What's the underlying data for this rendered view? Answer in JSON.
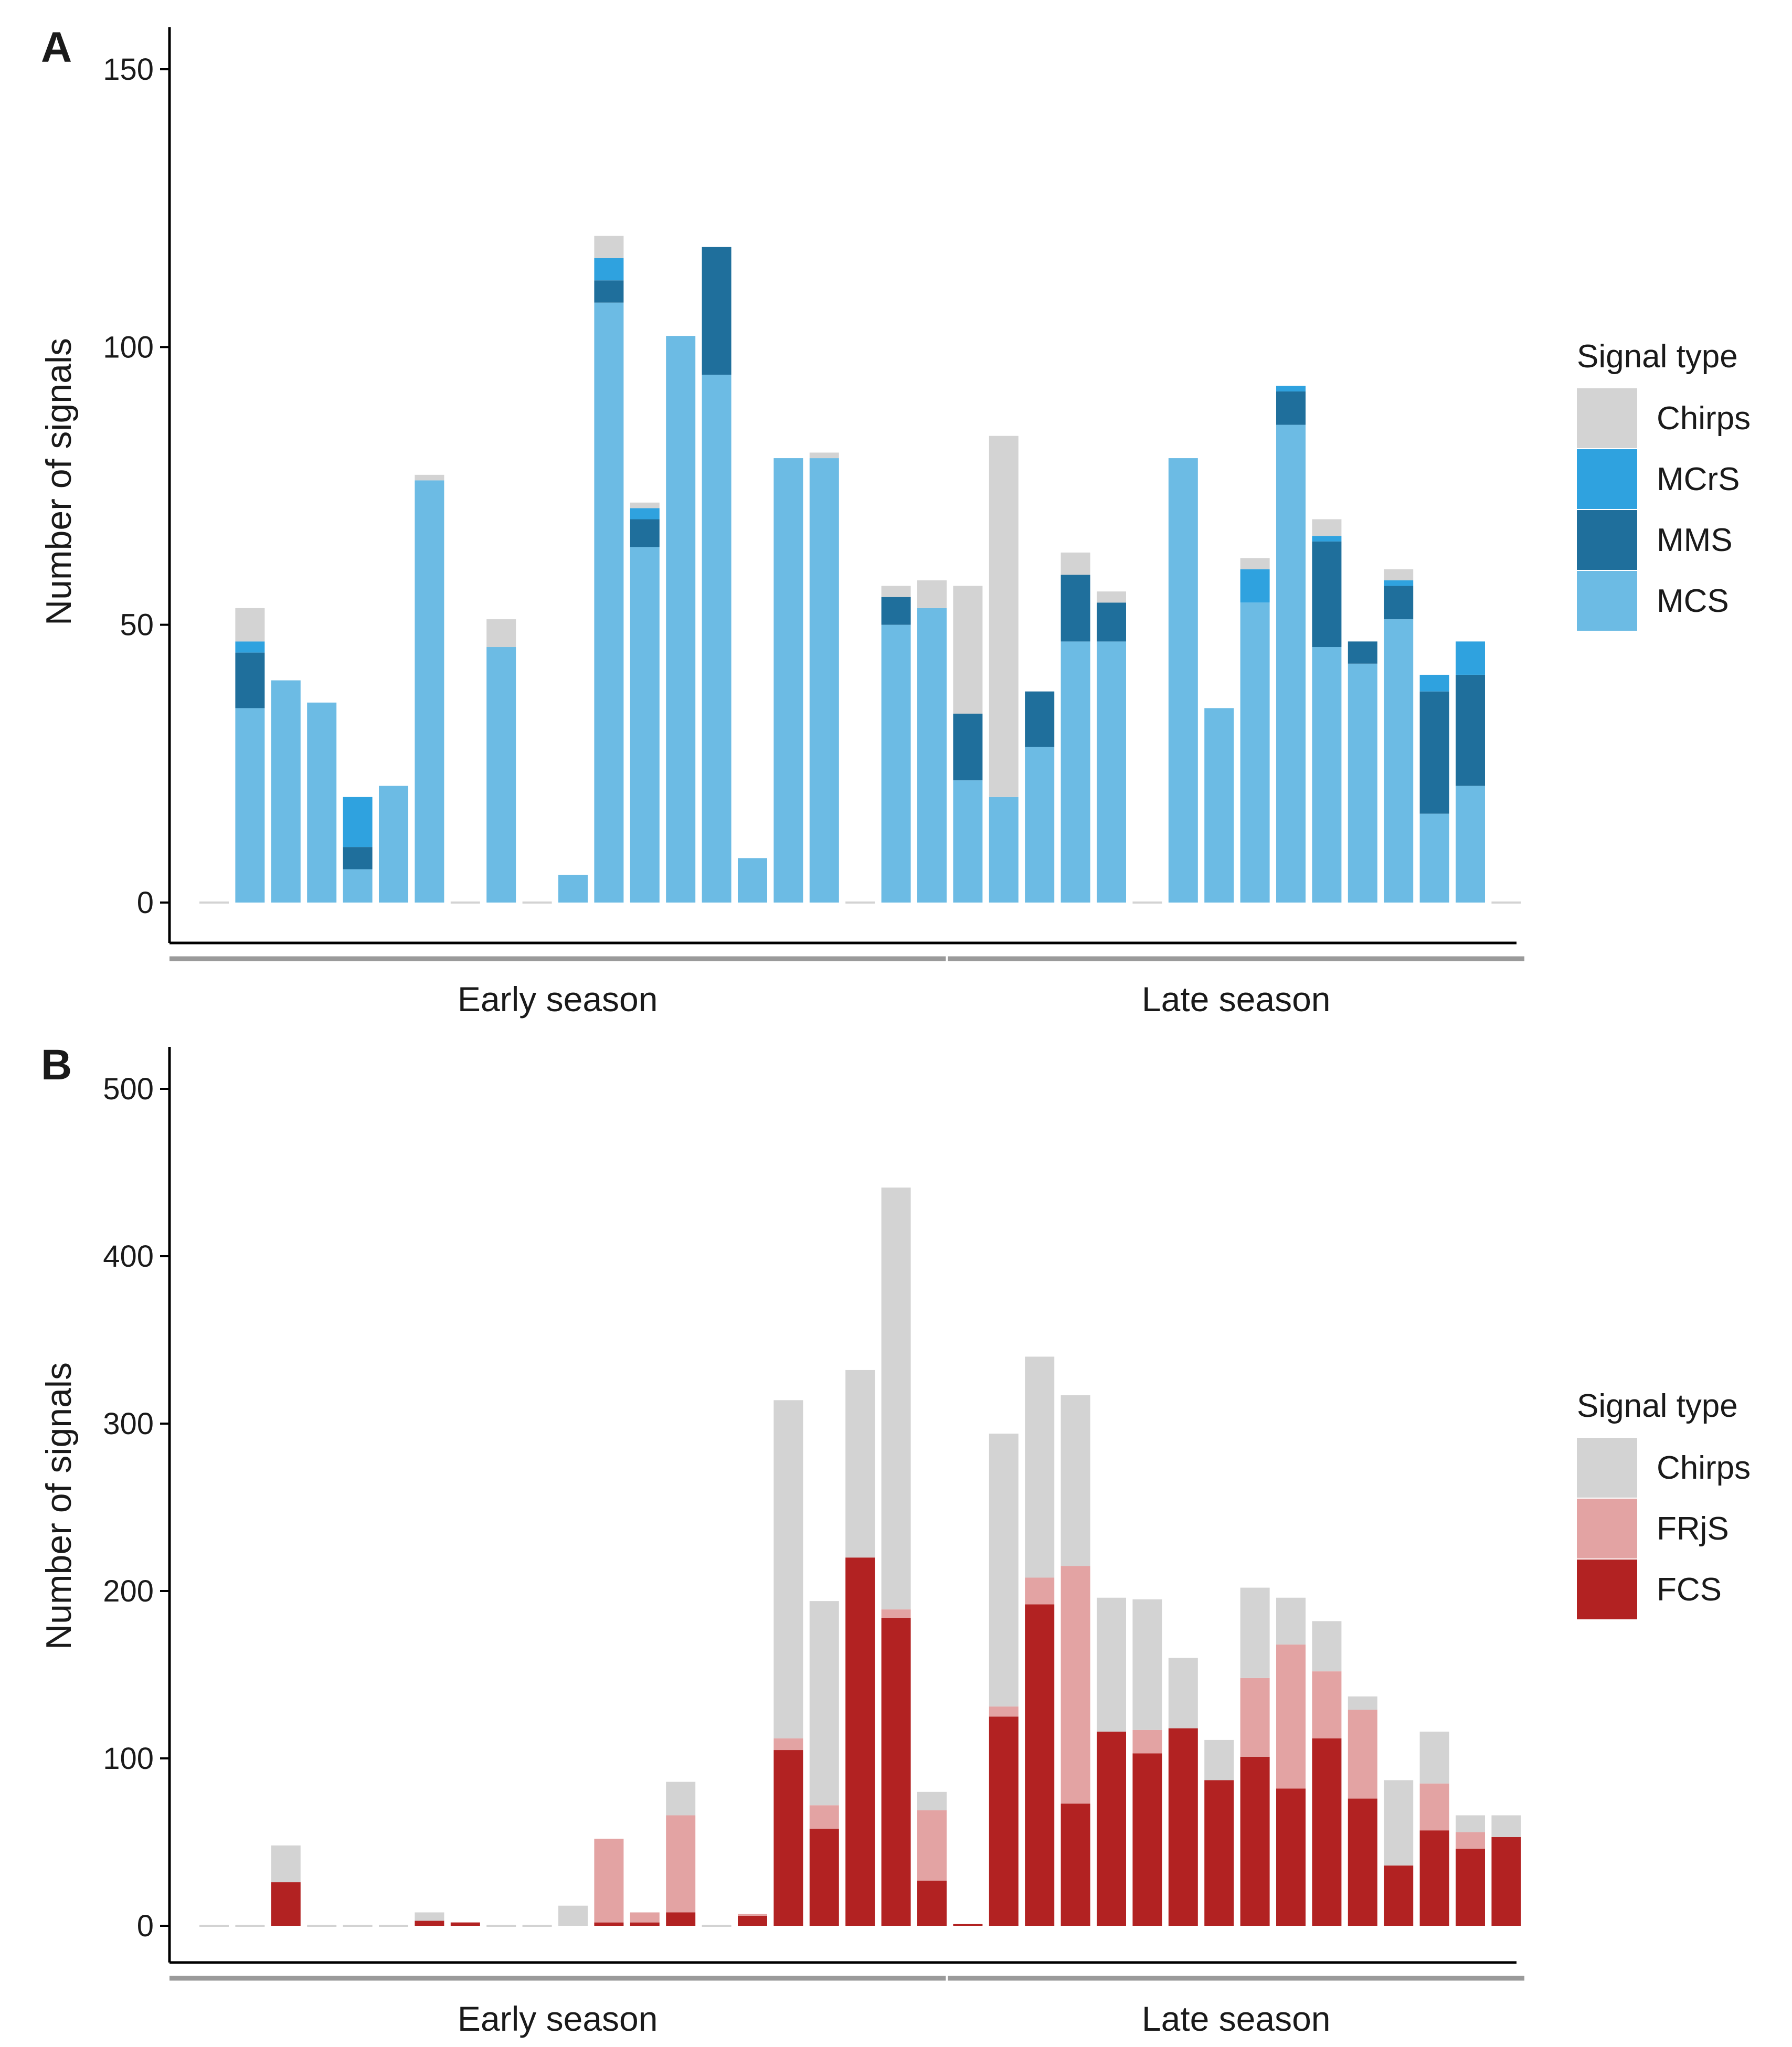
{
  "chart_data": [
    {
      "panel": "A",
      "type": "bar",
      "stacked": true,
      "ylabel": "Number of signals",
      "ylim": [
        0,
        150
      ],
      "yticks": [
        0,
        50,
        100,
        150
      ],
      "groups": [
        {
          "label": "Early season",
          "start": 1,
          "end": 21
        },
        {
          "label": "Late season",
          "start": 22,
          "end": 37
        }
      ],
      "legend": {
        "title": "Signal type",
        "placement": "right"
      },
      "series": [
        {
          "name": "MCS",
          "color": "#6cbbe4",
          "values": [
            0,
            35,
            40,
            36,
            6,
            21,
            76,
            0,
            46,
            0,
            5,
            108,
            64,
            102,
            95,
            8,
            80,
            80,
            0,
            50,
            53,
            22,
            19,
            28,
            47,
            47,
            0,
            80,
            35,
            54,
            86,
            46,
            43,
            51,
            16,
            21,
            0
          ]
        },
        {
          "name": "MMS",
          "color": "#1f6f9c",
          "values": [
            0,
            10,
            0,
            0,
            4,
            0,
            0,
            0,
            0,
            0,
            0,
            4,
            5,
            0,
            23,
            0,
            0,
            0,
            0,
            5,
            0,
            12,
            0,
            10,
            12,
            7,
            0,
            0,
            0,
            0,
            6,
            19,
            4,
            6,
            22,
            20,
            0
          ]
        },
        {
          "name": "MCrS",
          "color": "#2fa2df",
          "values": [
            0,
            2,
            0,
            0,
            9,
            0,
            0,
            0,
            0,
            0,
            0,
            4,
            2,
            0,
            0,
            0,
            0,
            0,
            0,
            0,
            0,
            0,
            0,
            0,
            0,
            0,
            0,
            0,
            0,
            6,
            1,
            1,
            0,
            1,
            3,
            6,
            0
          ]
        },
        {
          "name": "Chirps",
          "color": "#d3d3d3",
          "values": [
            0,
            6,
            0,
            0,
            0,
            0,
            1,
            0,
            5,
            0,
            0,
            4,
            1,
            0,
            0,
            0,
            0,
            1,
            0,
            2,
            5,
            23,
            65,
            0,
            4,
            2,
            0,
            0,
            0,
            2,
            0,
            3,
            0,
            2,
            0,
            0,
            0
          ]
        }
      ],
      "legend_order": [
        "Chirps",
        "MCrS",
        "MMS",
        "MCS"
      ]
    },
    {
      "panel": "B",
      "type": "bar",
      "stacked": true,
      "ylabel": "Number of signals",
      "ylim": [
        0,
        500
      ],
      "yticks": [
        0,
        100,
        200,
        300,
        400,
        500
      ],
      "groups": [
        {
          "label": "Early season",
          "start": 1,
          "end": 21
        },
        {
          "label": "Late season",
          "start": 22,
          "end": 37
        }
      ],
      "legend": {
        "title": "Signal type",
        "placement": "right"
      },
      "series": [
        {
          "name": "FCS",
          "color": "#b22222",
          "values": [
            0,
            0,
            26,
            0,
            0,
            0,
            3,
            2,
            0,
            0,
            0,
            2,
            2,
            8,
            0,
            6,
            105,
            58,
            220,
            184,
            27,
            1,
            125,
            192,
            73,
            116,
            103,
            118,
            87,
            101,
            82,
            112,
            76,
            36,
            57,
            46,
            53
          ]
        },
        {
          "name": "FRjS",
          "color": "#e3a3a3",
          "values": [
            0,
            0,
            0,
            0,
            0,
            0,
            0,
            0,
            0,
            0,
            0,
            50,
            6,
            58,
            0,
            1,
            7,
            14,
            0,
            5,
            42,
            0,
            6,
            16,
            142,
            0,
            14,
            0,
            0,
            47,
            86,
            40,
            53,
            0,
            28,
            10,
            0
          ]
        },
        {
          "name": "Chirps",
          "color": "#d3d3d3",
          "values": [
            0,
            0,
            22,
            0,
            0,
            0,
            5,
            0,
            0,
            0,
            12,
            0,
            0,
            20,
            0,
            0,
            202,
            122,
            112,
            252,
            11,
            0,
            163,
            132,
            102,
            80,
            78,
            42,
            24,
            54,
            28,
            30,
            8,
            51,
            31,
            10,
            13
          ]
        }
      ],
      "legend_order": [
        "Chirps",
        "FRjS",
        "FCS"
      ]
    }
  ],
  "panels": {
    "A": {
      "letter": "A"
    },
    "B": {
      "letter": "B"
    }
  }
}
